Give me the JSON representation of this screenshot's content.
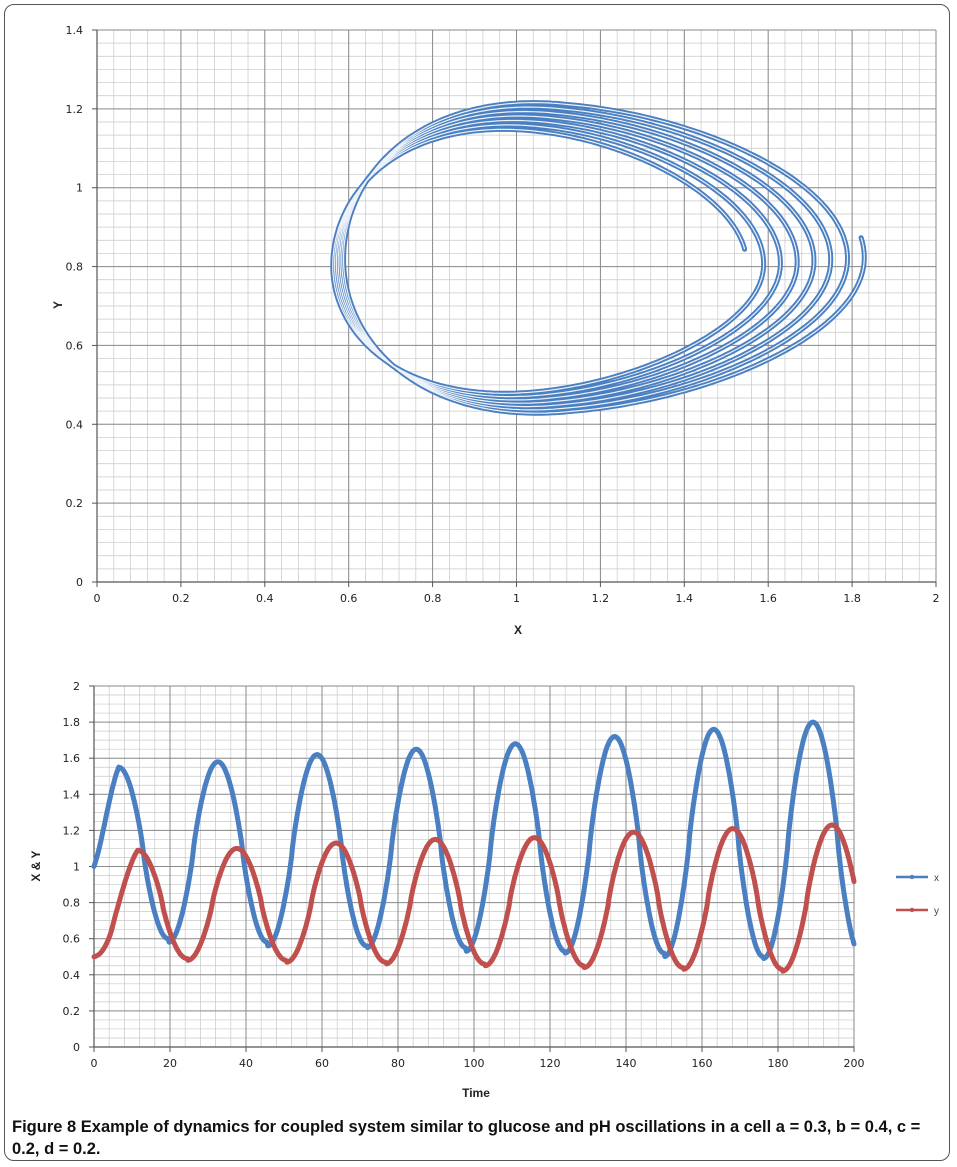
{
  "caption": {
    "label": "Figure 8",
    "text": "Example of dynamics for coupled system similar to glucose and pH oscillations in a cell a = 0.3, b = 0.4, c = 0.2, d = 0.2."
  },
  "chart_data": [
    {
      "type": "line",
      "title": "",
      "xlabel": "X",
      "ylabel": "Y",
      "xlim": [
        0,
        2
      ],
      "ylim": [
        0,
        1.4
      ],
      "x_ticks": [
        "0",
        "0.2",
        "0.4",
        "0.6",
        "0.8",
        "1",
        "1.2",
        "1.4",
        "1.6",
        "1.8",
        "2"
      ],
      "y_ticks": [
        "0",
        "0.2",
        "0.4",
        "0.6",
        "0.8",
        "1",
        "1.2",
        "1.4"
      ],
      "grid": true,
      "series": [
        {
          "color": "#4a7fc1",
          "style": "spiral phase-plane trajectory, 7 loops",
          "x": [
            0.5,
            0.51,
            0.52,
            0.55,
            0.6,
            0.66,
            0.72,
            0.78,
            0.84,
            0.9,
            0.96,
            1.02,
            1.08,
            1.14,
            1.2,
            1.28,
            1.36,
            1.44,
            1.52,
            1.58,
            1.62,
            1.64,
            1.62,
            1.55,
            1.45,
            1.33,
            1.2,
            1.05,
            0.9,
            0.77,
            0.66,
            0.59,
            0.55,
            0.54,
            0.56,
            0.62,
            0.72,
            0.85,
            1.0,
            1.15,
            1.3,
            1.45,
            1.58,
            1.7,
            1.78,
            1.81,
            1.78,
            1.7,
            1.58,
            1.45,
            1.3,
            1.15,
            1.0,
            0.87,
            0.76,
            0.68,
            0.62
          ],
          "y": [
            0.92,
            0.86,
            0.78,
            0.7,
            0.62,
            0.56,
            0.52,
            0.5,
            0.49,
            0.48,
            0.48,
            0.48,
            0.49,
            0.5,
            0.51,
            0.53,
            0.56,
            0.61,
            0.68,
            0.75,
            0.82,
            0.87,
            0.93,
            1.0,
            1.06,
            1.11,
            1.14,
            1.16,
            1.15,
            1.12,
            1.07,
            0.99,
            0.9,
            0.8,
            0.68,
            0.58,
            0.5,
            0.45,
            0.43,
            0.43,
            0.45,
            0.48,
            0.55,
            0.63,
            0.72,
            0.78,
            0.88,
            0.98,
            1.08,
            1.16,
            1.21,
            1.23,
            1.23,
            1.21,
            1.16,
            1.09,
            1.01
          ]
        }
      ]
    },
    {
      "type": "line",
      "title": "",
      "xlabel": "Time",
      "ylabel": "X & Y",
      "xlim": [
        0,
        200
      ],
      "ylim": [
        0,
        2
      ],
      "x_ticks": [
        "0",
        "20",
        "40",
        "60",
        "80",
        "100",
        "120",
        "140",
        "160",
        "180",
        "200"
      ],
      "y_ticks": [
        "0",
        "0.2",
        "0.4",
        "0.6",
        "0.8",
        "1",
        "1.2",
        "1.4",
        "1.6",
        "1.8",
        "2"
      ],
      "grid": true,
      "legend": "right",
      "period": 26.1,
      "series": [
        {
          "name": "x",
          "color": "#4a7fc1",
          "start": 1.0,
          "end": 0.5,
          "peak_times": [
            6.5,
            32.5,
            58.6,
            84.7,
            110.8,
            136.9,
            163.0,
            190.0
          ],
          "peak_values": [
            1.55,
            1.58,
            1.62,
            1.65,
            1.68,
            1.72,
            1.76,
            1.8
          ],
          "trough_values": [
            0.6,
            0.58,
            0.56,
            0.55,
            0.53,
            0.52,
            0.5,
            0.49
          ]
        },
        {
          "name": "y",
          "color": "#c0504d",
          "start": 0.5,
          "end": 0.92,
          "peak_times": [
            11.5,
            37.6,
            63.7,
            89.8,
            115.9,
            142.0,
            168.1,
            195.0
          ],
          "peak_values": [
            1.09,
            1.1,
            1.13,
            1.15,
            1.16,
            1.19,
            1.21,
            1.23
          ],
          "trough_values": [
            0.49,
            0.48,
            0.47,
            0.46,
            0.45,
            0.44,
            0.43,
            0.42
          ]
        }
      ]
    }
  ]
}
